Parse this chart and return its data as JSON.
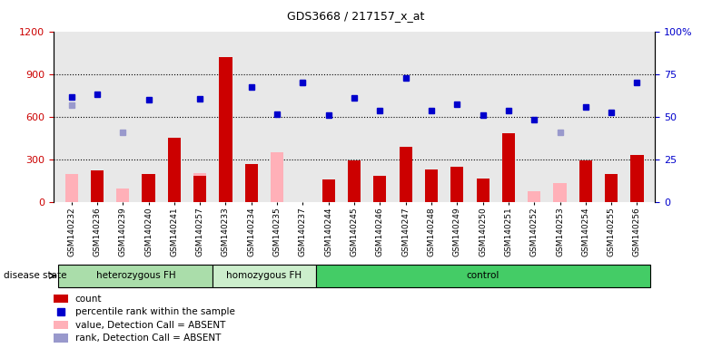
{
  "title": "GDS3668 / 217157_x_at",
  "samples": [
    "GSM140232",
    "GSM140236",
    "GSM140239",
    "GSM140240",
    "GSM140241",
    "GSM140257",
    "GSM140233",
    "GSM140234",
    "GSM140235",
    "GSM140237",
    "GSM140244",
    "GSM140245",
    "GSM140246",
    "GSM140247",
    "GSM140248",
    "GSM140249",
    "GSM140250",
    "GSM140251",
    "GSM140252",
    "GSM140253",
    "GSM140254",
    "GSM140255",
    "GSM140256"
  ],
  "groups": [
    {
      "label": "heterozygous FH",
      "start": 0,
      "end": 6
    },
    {
      "label": "homozygous FH",
      "start": 6,
      "end": 10
    },
    {
      "label": "control",
      "start": 10,
      "end": 23
    }
  ],
  "group_colors": [
    "#aaddaa",
    "#cceecc",
    "#44cc66"
  ],
  "count": [
    null,
    220,
    null,
    195,
    450,
    185,
    1020,
    265,
    null,
    null,
    155,
    290,
    185,
    390,
    230,
    250,
    165,
    480,
    null,
    null,
    290,
    195,
    330
  ],
  "percentile": [
    740,
    760,
    null,
    720,
    null,
    725,
    null,
    810,
    615,
    840,
    610,
    730,
    640,
    870,
    640,
    690,
    610,
    640,
    580,
    null,
    670,
    630,
    840
  ],
  "absent_value": [
    195,
    null,
    95,
    null,
    null,
    200,
    null,
    null,
    350,
    null,
    null,
    null,
    null,
    null,
    null,
    null,
    null,
    null,
    75,
    135,
    null,
    155,
    null
  ],
  "absent_rank": [
    680,
    null,
    490,
    null,
    null,
    null,
    null,
    null,
    null,
    840,
    null,
    null,
    null,
    null,
    null,
    null,
    null,
    null,
    null,
    490,
    null,
    null,
    null
  ],
  "ylim_left": [
    0,
    1200
  ],
  "ylim_right": [
    0,
    100
  ],
  "yticks_left": [
    0,
    300,
    600,
    900,
    1200
  ],
  "yticks_right": [
    0,
    25,
    50,
    75,
    100
  ],
  "left_color": "#cc0000",
  "right_color": "#0000cc",
  "plot_bg": "#e8e8e8",
  "bar_color": "#cc0000",
  "pink_color": "#ffb0b8",
  "blue_sq_color": "#0000cc",
  "light_blue_color": "#9999cc",
  "disease_state_label": "disease state",
  "grid_lines": [
    300,
    600,
    900
  ],
  "legend_items": [
    {
      "color": "#cc0000",
      "type": "rect",
      "label": "count"
    },
    {
      "color": "#0000cc",
      "type": "square",
      "label": "percentile rank within the sample"
    },
    {
      "color": "#ffb0b8",
      "type": "rect",
      "label": "value, Detection Call = ABSENT"
    },
    {
      "color": "#9999cc",
      "type": "rect",
      "label": "rank, Detection Call = ABSENT"
    }
  ]
}
